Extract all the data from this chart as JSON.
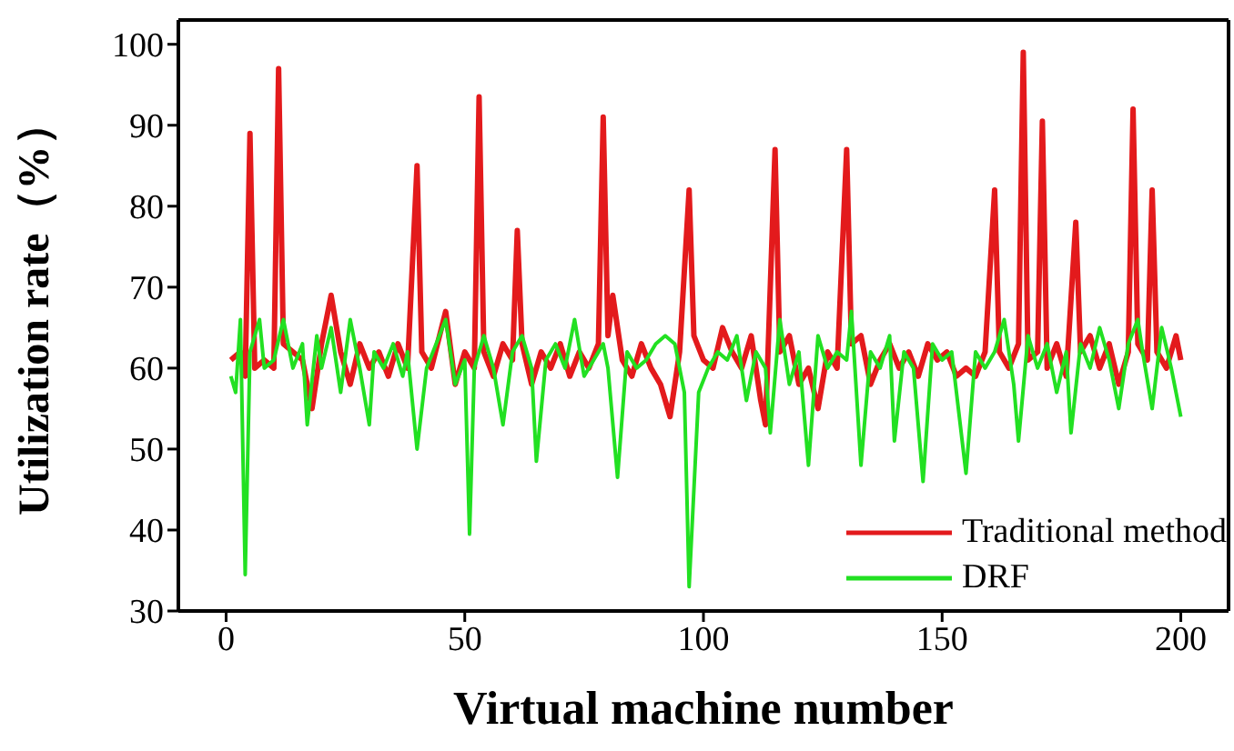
{
  "chart_data": {
    "type": "line",
    "xlabel": "Virtual machine number",
    "ylabel": "Utilization rate（%）",
    "xlim": [
      -10,
      210
    ],
    "xticks": [
      0,
      50,
      100,
      150,
      200
    ],
    "ylim": [
      30,
      103
    ],
    "yticks": [
      30,
      40,
      50,
      60,
      70,
      80,
      90,
      100
    ],
    "legend": "bottom right",
    "marker": "none",
    "line_style": "solid",
    "series": [
      {
        "name": "Traditional method",
        "color": "#e31a1c",
        "x": [
          1,
          3,
          4,
          5,
          6,
          8,
          10,
          11,
          12,
          14,
          16,
          18,
          20,
          22,
          24,
          26,
          28,
          30,
          32,
          34,
          36,
          38,
          40,
          41,
          43,
          46,
          48,
          50,
          52,
          53,
          54,
          56,
          58,
          60,
          61,
          62,
          64,
          66,
          68,
          70,
          72,
          74,
          76,
          78,
          79,
          80,
          81,
          83,
          85,
          87,
          89,
          91,
          93,
          95,
          97,
          98,
          100,
          102,
          104,
          106,
          108,
          110,
          112,
          113,
          115,
          116,
          118,
          120,
          122,
          124,
          126,
          128,
          130,
          131,
          133,
          135,
          137,
          139,
          141,
          143,
          145,
          147,
          149,
          151,
          153,
          155,
          157,
          159,
          161,
          162,
          164,
          166,
          167,
          168,
          170,
          171,
          172,
          174,
          176,
          178,
          179,
          181,
          183,
          185,
          187,
          189,
          190,
          191,
          193,
          194,
          195,
          197,
          199,
          200
        ],
        "values": [
          61,
          62,
          59,
          89,
          60,
          61,
          60,
          97,
          63,
          62,
          61,
          55,
          63,
          69,
          62,
          58,
          63,
          60,
          62,
          59,
          63,
          60,
          85,
          62,
          60,
          67,
          58,
          62,
          60,
          93.5,
          62,
          59,
          63,
          61,
          77,
          63,
          58,
          62,
          60,
          63,
          59,
          62,
          60,
          63,
          91,
          64,
          69,
          61,
          59,
          63,
          60,
          58,
          54,
          62,
          82,
          64,
          61,
          60,
          65,
          62,
          60,
          64,
          56,
          53,
          87,
          62,
          64,
          58,
          60,
          55,
          62,
          60,
          87,
          63,
          64,
          58,
          61,
          63,
          60,
          62,
          59,
          63,
          61,
          62,
          59,
          60,
          59,
          62,
          82,
          62,
          60,
          63,
          99,
          61,
          62,
          90.5,
          60,
          63,
          59,
          78,
          62,
          64,
          60,
          63,
          58,
          62,
          92,
          63,
          61,
          82,
          62,
          60,
          64,
          61
        ]
      },
      {
        "name": "DRF",
        "color": "#22e022",
        "x": [
          1,
          2,
          3,
          4,
          5,
          7,
          8,
          10,
          12,
          14,
          16,
          17,
          19,
          20,
          22,
          24,
          26,
          28,
          30,
          31,
          33,
          35,
          37,
          38,
          40,
          42,
          44,
          46,
          48,
          50,
          51,
          52,
          54,
          56,
          58,
          60,
          62,
          64,
          65,
          67,
          69,
          71,
          73,
          75,
          77,
          79,
          80,
          82,
          84,
          86,
          88,
          90,
          92,
          94,
          96,
          97,
          99,
          101,
          103,
          105,
          107,
          109,
          111,
          113,
          114,
          116,
          118,
          120,
          122,
          124,
          126,
          128,
          130,
          131,
          133,
          135,
          137,
          139,
          140,
          142,
          144,
          146,
          148,
          150,
          152,
          155,
          157,
          159,
          161,
          163,
          165,
          166,
          168,
          170,
          172,
          174,
          176,
          177,
          179,
          181,
          183,
          185,
          187,
          189,
          191,
          192,
          194,
          196,
          198,
          200
        ],
        "values": [
          59,
          57,
          66,
          34.5,
          62,
          66,
          60,
          61,
          66,
          60,
          63,
          53,
          64,
          60,
          65,
          57,
          66,
          60,
          53,
          62,
          60,
          63,
          59,
          62,
          50,
          60,
          63,
          66,
          58,
          61,
          39.5,
          60,
          64,
          60,
          53,
          62,
          64,
          60,
          48.5,
          61,
          63,
          60,
          66,
          59,
          61,
          63,
          60,
          46.5,
          62,
          60,
          61,
          63,
          64,
          63,
          57,
          33,
          57,
          60,
          62,
          61,
          64,
          56,
          62,
          60,
          52,
          66,
          58,
          62,
          48,
          64,
          60,
          62,
          61,
          67,
          48,
          62,
          60,
          64,
          51,
          62,
          60,
          46,
          63,
          61,
          62,
          47,
          62,
          60,
          62,
          66,
          58,
          51,
          64,
          60,
          63,
          57,
          62,
          52,
          63,
          60,
          65,
          61,
          55,
          63,
          66,
          62,
          55,
          65,
          60,
          54
        ]
      }
    ]
  }
}
